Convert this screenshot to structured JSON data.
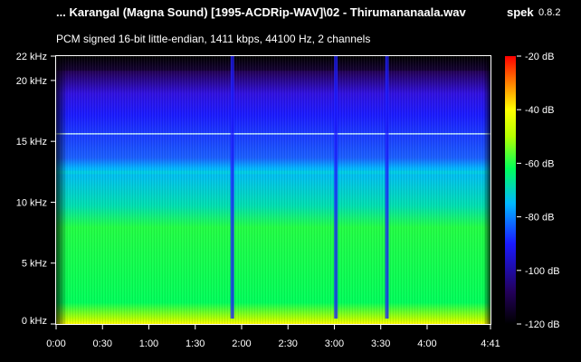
{
  "header": {
    "file_title": "... Karangal (Magna Sound) [1995-ACDRip-WAV]\\02 - Thirumananaala.wav",
    "app_name": "spek",
    "app_version": "0.8.2",
    "stream_info": "PCM signed 16-bit little-endian, 1411 kbps, 44100 Hz, 2 channels"
  },
  "chart_data": {
    "type": "heatmap",
    "title": "",
    "x_axis": {
      "unit": "time",
      "range_seconds": [
        0,
        281
      ],
      "tick_labels": [
        "0:00",
        "0:30",
        "1:00",
        "1:30",
        "2:00",
        "2:30",
        "3:00",
        "3:30",
        "4:00",
        "4:41"
      ],
      "tick_seconds": [
        0,
        30,
        60,
        90,
        120,
        150,
        180,
        210,
        240,
        281
      ]
    },
    "y_axis": {
      "unit": "kHz",
      "range_khz": [
        0,
        22
      ],
      "tick_labels": [
        "0 kHz",
        "5 kHz",
        "10 kHz",
        "15 kHz",
        "20 kHz",
        "22 kHz"
      ],
      "tick_khz": [
        0,
        5,
        10,
        15,
        20,
        22
      ]
    },
    "color_scale": {
      "unit": "dB",
      "range_db": [
        -120,
        -20
      ],
      "tick_labels": [
        "-20 dB",
        "-40 dB",
        "-60 dB",
        "-80 dB",
        "-100 dB",
        "-120 dB"
      ],
      "tick_db": [
        -20,
        -40,
        -60,
        -80,
        -100,
        -120
      ],
      "colors": [
        "#000000",
        "#23005a",
        "#1a1aff",
        "#00b8ff",
        "#00ff5a",
        "#b4ff00",
        "#ffff00",
        "#ff8000",
        "#ff0000"
      ]
    },
    "features": {
      "bandwidth_cutoff_khz": 20.8,
      "narrow_tone_khz": 15.6,
      "shelf_khz": 12.6,
      "dropout_seconds": [
        114,
        181,
        214
      ]
    }
  }
}
